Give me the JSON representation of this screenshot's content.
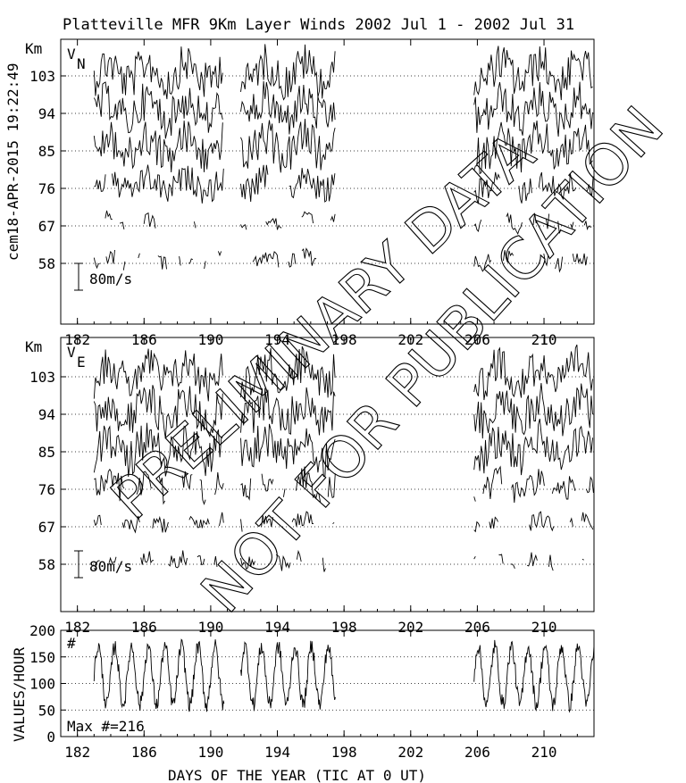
{
  "title": "Platteville MFR 9Km Layer Winds 2002 Jul  1 - 2002 Jul 31",
  "side_label": "cem18-APR-2015 19:22:49",
  "watermark": [
    "PRELIMINARY DATA",
    "NOT FOR PUBLICATION"
  ],
  "xlabel": "DAYS OF THE YEAR (TIC AT 0 UT)",
  "chart_data": [
    {
      "type": "line",
      "panel": "vn",
      "series_label": "V",
      "series_sub": "N",
      "ylabel": "Km",
      "scale_label": "80m/s",
      "xlim": [
        181,
        213
      ],
      "xticks": [
        182,
        186,
        190,
        194,
        198,
        202,
        206,
        210
      ],
      "heights": [
        103,
        94,
        85,
        76,
        67,
        58
      ],
      "data_ranges": [
        [
          183.0,
          190.8
        ],
        [
          191.8,
          197.5
        ],
        [
          205.8,
          213
        ]
      ],
      "grid": "horizontal-dotted"
    },
    {
      "type": "line",
      "panel": "ve",
      "series_label": "V",
      "series_sub": "E",
      "ylabel": "Km",
      "scale_label": "80m/s",
      "xlim": [
        181,
        213
      ],
      "xticks": [
        182,
        186,
        190,
        194,
        198,
        202,
        206,
        210
      ],
      "heights": [
        103,
        94,
        85,
        76,
        67,
        58
      ],
      "data_ranges": [
        [
          183.0,
          190.8
        ],
        [
          191.8,
          197.5
        ],
        [
          205.8,
          213
        ]
      ],
      "grid": "horizontal-dotted"
    },
    {
      "type": "line",
      "panel": "count",
      "ylabel": "VALUES/HOUR",
      "series_label": "#",
      "annotation": "Max #=216",
      "xlim": [
        181,
        213
      ],
      "ylim": [
        0,
        200
      ],
      "yticks": [
        0,
        50,
        100,
        150,
        200
      ],
      "xticks": [
        182,
        186,
        190,
        194,
        198,
        202,
        206,
        210
      ],
      "data_ranges": [
        [
          183.0,
          190.8
        ],
        [
          191.8,
          197.5
        ],
        [
          205.8,
          213
        ]
      ],
      "grid": "horizontal-dotted"
    }
  ]
}
